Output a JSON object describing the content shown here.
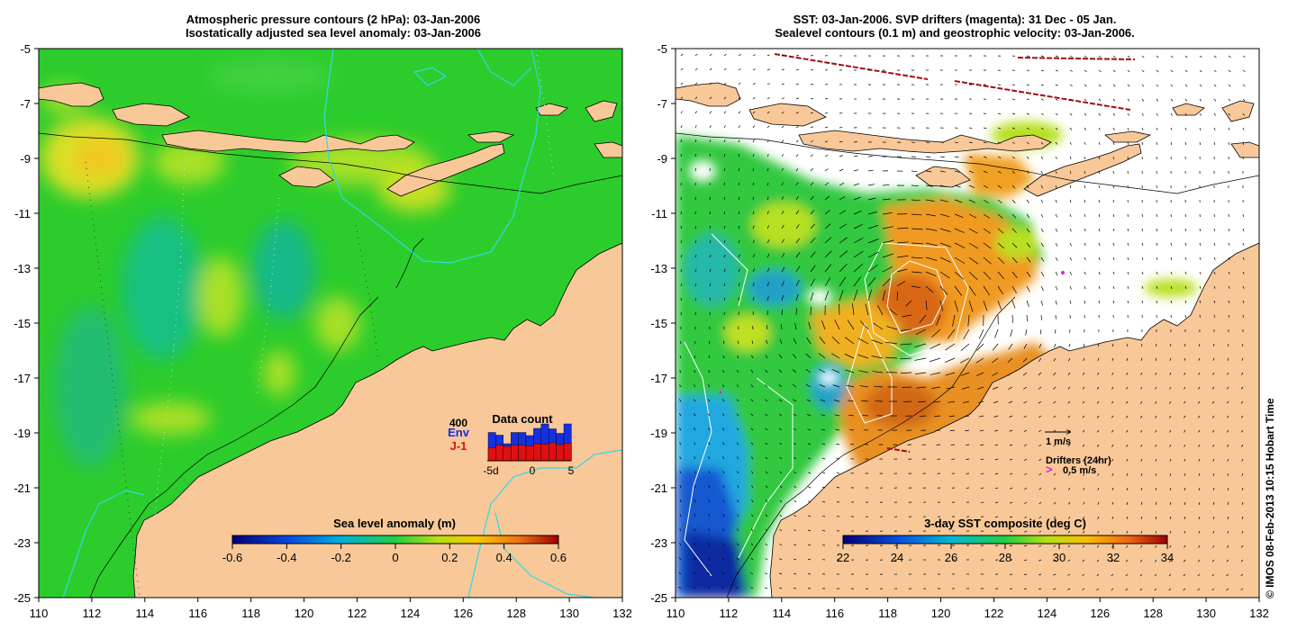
{
  "left_panel": {
    "title_line1": "Atmospheric pressure contours (2 hPa): 03-Jan-2006",
    "title_line2": "Isostatically adjusted sea level anomaly: 03-Jan-2006",
    "colorbar": {
      "title": "Sea level anomaly (m)",
      "ticks": [
        "-0.6",
        "-0.4",
        "-0.2",
        "0",
        "0.2",
        "0.4",
        "0.6"
      ],
      "min": -0.6,
      "max": 0.6
    },
    "data_count": {
      "title": "Data count",
      "max_label": "400",
      "series_env": "Env",
      "series_j1": "J-1",
      "x_ticks": [
        "-5d",
        "0",
        "5"
      ],
      "env_values": [
        0.63,
        0.57,
        0.38,
        0.63,
        0.63,
        0.56,
        0.72,
        0.82,
        0.71,
        0.61,
        0.82
      ],
      "j1_values": [
        0.29,
        0.35,
        0.32,
        0.35,
        0.35,
        0.33,
        0.38,
        0.37,
        0.4,
        0.36,
        0.39
      ],
      "colors": {
        "env": "#1530e0",
        "j1": "#e01010"
      }
    }
  },
  "right_panel": {
    "title_line1": "SST: 03-Jan-2006. SVP drifters (magenta): 31 Dec - 05 Jan.",
    "title_line2": "Sealevel contours (0.1 m) and geostrophic velocity: 03-Jan-2006.",
    "colorbar": {
      "title": "3-day SST composite (deg C)",
      "ticks": [
        "22",
        "24",
        "26",
        "28",
        "30",
        "32",
        "34"
      ],
      "min": 22,
      "max": 34
    },
    "legend": {
      "velocity_label": "1 m/s",
      "drifters_label": "Drifters (24hr)",
      "drifter_speed_label": "0.5 m/s",
      "drifter_symbol": ">",
      "drifter_color": "#e020e0"
    }
  },
  "axes": {
    "lon_ticks": [
      "110",
      "112",
      "114",
      "116",
      "118",
      "120",
      "122",
      "124",
      "126",
      "128",
      "130",
      "132"
    ],
    "lat_ticks": [
      "-5",
      "-7",
      "-9",
      "-11",
      "-13",
      "-15",
      "-17",
      "-19",
      "-21",
      "-23",
      "-25"
    ],
    "lon_range": [
      110,
      132
    ],
    "lat_range": [
      -25,
      -5
    ]
  },
  "credit": "© IMOS 08-Feb-2013 10:15 Hobart Time",
  "colors": {
    "land": "#f8c898",
    "sla_background": "#2ccc2c",
    "sst_ocean": "#ffffff",
    "contour_cyan": "#30d8e8"
  }
}
